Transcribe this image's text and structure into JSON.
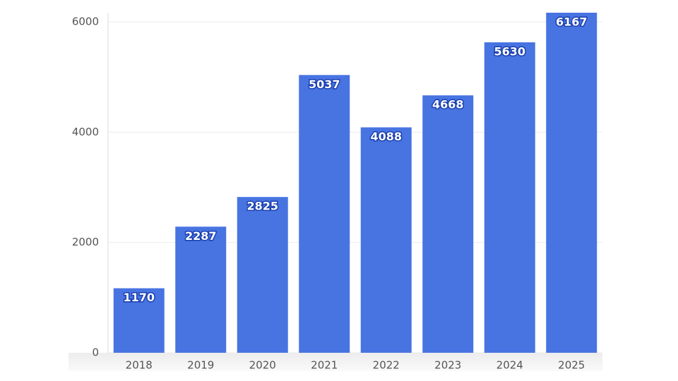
{
  "chart_data": {
    "type": "bar",
    "categories": [
      "2018",
      "2019",
      "2020",
      "2021",
      "2022",
      "2023",
      "2024",
      "2025"
    ],
    "values": [
      1170,
      2287,
      2825,
      5037,
      4088,
      4668,
      5630,
      6167
    ],
    "color": "#4874e2",
    "ylim": [
      0,
      6167
    ],
    "yticks": [
      0,
      2000,
      4000,
      6000
    ],
    "grid": true
  }
}
